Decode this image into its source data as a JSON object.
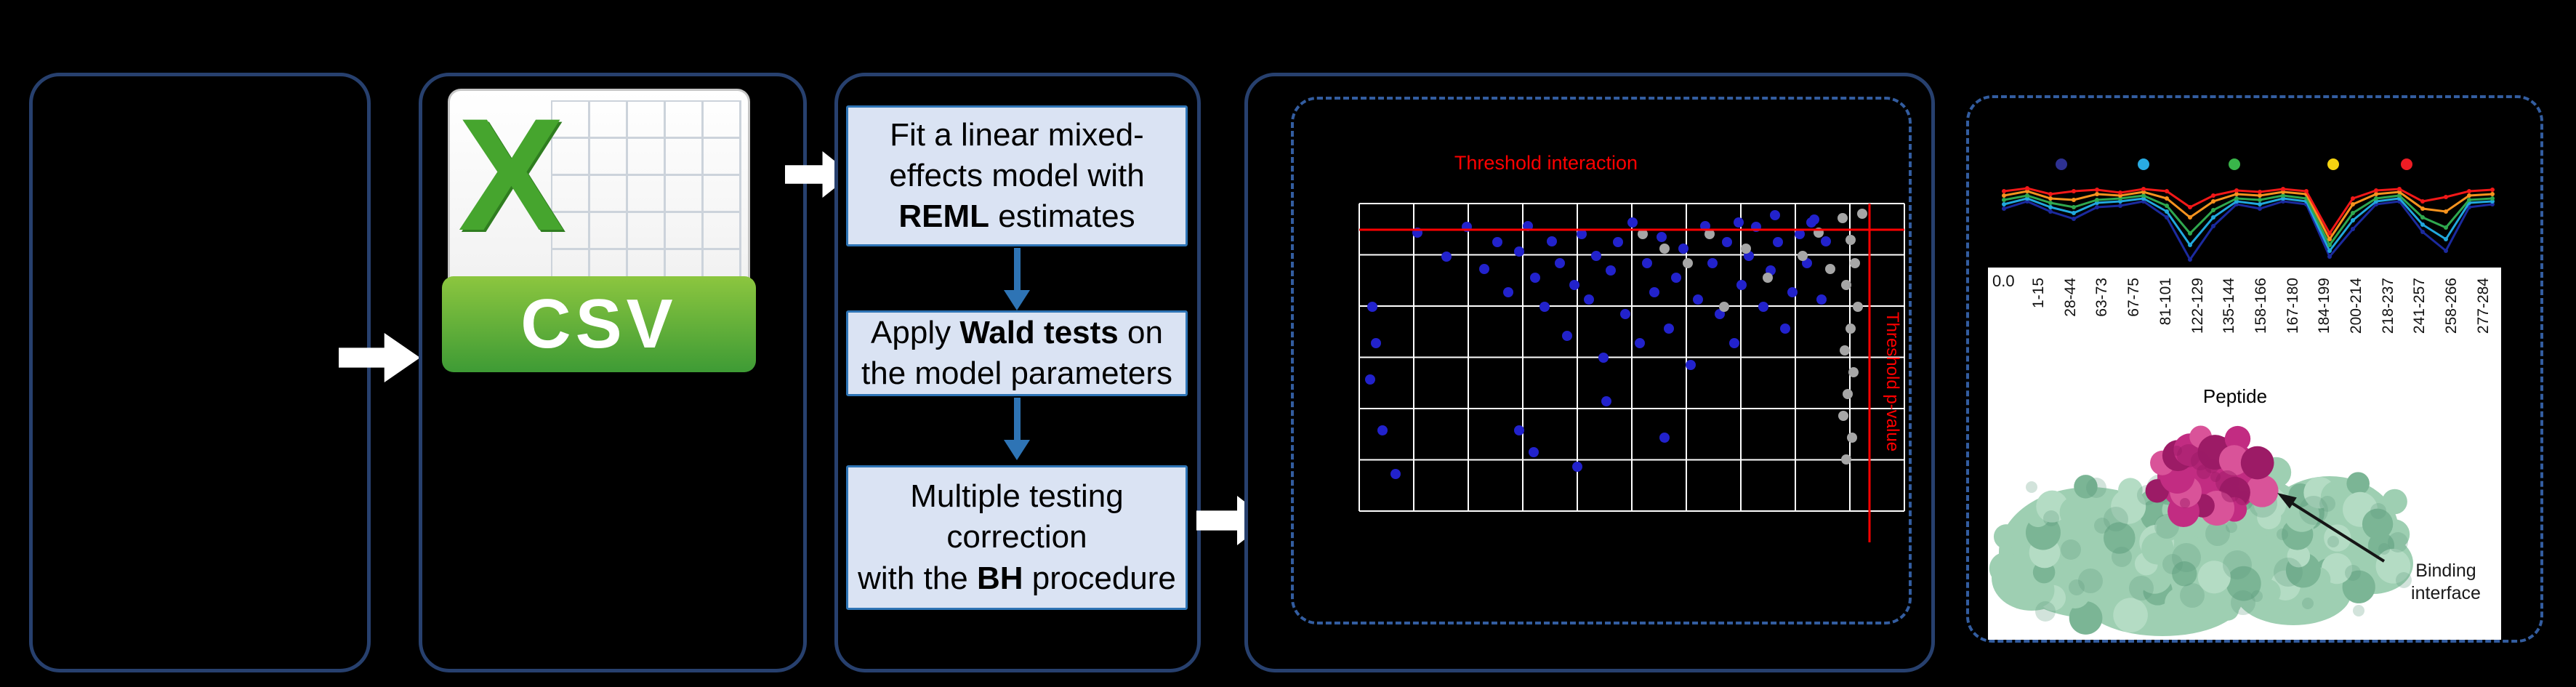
{
  "palette": {
    "background": "#000000",
    "panel_border": "#27406E",
    "dashed_border": "#335DA0",
    "step_fill": "#DAE3F3",
    "step_border": "#2E74B5",
    "arrow_white": "#FFFFFF",
    "threshold_red": "#FF0000",
    "scatter_blue": "#2222CC",
    "scatter_gray": "#A6A6A6",
    "grid_white": "#FFFFFF",
    "csv_green": "#3E9B35"
  },
  "csv_icon": {
    "letter": "X",
    "banner_label": "CSV"
  },
  "pipeline": {
    "steps": [
      {
        "lines": [
          [
            {
              "t": "Fit a linear mixed-"
            }
          ],
          [
            {
              "t": "effects model with"
            }
          ],
          [
            {
              "t": "REML",
              "b": true
            },
            {
              "t": " estimates"
            }
          ]
        ]
      },
      {
        "lines": [
          [
            {
              "t": "Apply "
            },
            {
              "t": "Wald tests",
              "b": true
            },
            {
              "t": " on"
            }
          ],
          [
            {
              "t": "the model parameters"
            }
          ]
        ]
      },
      {
        "lines": [
          [
            {
              "t": "Multiple testing"
            }
          ],
          [
            {
              "t": "correction"
            }
          ],
          [
            {
              "t": "with the "
            },
            {
              "t": "BH",
              "b": true
            },
            {
              "t": " procedure"
            }
          ]
        ]
      }
    ]
  },
  "scatter": {
    "title": "Threshold interaction",
    "right_label": "Threshold p-value",
    "blue_points": [
      [
        160,
        150
      ],
      [
        200,
        183
      ],
      [
        228,
        142
      ],
      [
        252,
        200
      ],
      [
        270,
        163
      ],
      [
        285,
        232
      ],
      [
        300,
        176
      ],
      [
        312,
        141
      ],
      [
        322,
        212
      ],
      [
        335,
        252
      ],
      [
        345,
        162
      ],
      [
        356,
        192
      ],
      [
        366,
        292
      ],
      [
        376,
        222
      ],
      [
        386,
        152
      ],
      [
        396,
        242
      ],
      [
        406,
        182
      ],
      [
        416,
        322
      ],
      [
        426,
        202
      ],
      [
        436,
        163
      ],
      [
        446,
        262
      ],
      [
        456,
        136
      ],
      [
        466,
        302
      ],
      [
        476,
        192
      ],
      [
        486,
        232
      ],
      [
        496,
        156
      ],
      [
        506,
        282
      ],
      [
        516,
        212
      ],
      [
        526,
        172
      ],
      [
        536,
        332
      ],
      [
        546,
        242
      ],
      [
        556,
        141
      ],
      [
        566,
        192
      ],
      [
        576,
        262
      ],
      [
        586,
        163
      ],
      [
        596,
        302
      ],
      [
        606,
        222
      ],
      [
        616,
        182
      ],
      [
        626,
        142
      ],
      [
        636,
        252
      ],
      [
        646,
        202
      ],
      [
        656,
        163
      ],
      [
        666,
        282
      ],
      [
        676,
        232
      ],
      [
        686,
        152
      ],
      [
        696,
        192
      ],
      [
        706,
        132
      ],
      [
        716,
        242
      ],
      [
        300,
        422
      ],
      [
        320,
        452
      ],
      [
        420,
        382
      ],
      [
        95,
        352
      ],
      [
        103,
        302
      ],
      [
        112,
        422
      ],
      [
        130,
        482
      ],
      [
        98,
        252
      ],
      [
        602,
        136
      ],
      [
        652,
        126
      ],
      [
        702,
        136
      ],
      [
        722,
        162
      ],
      [
        380,
        472
      ],
      [
        500,
        432
      ]
    ],
    "gray_points": [
      [
        745,
        130
      ],
      [
        756,
        160
      ],
      [
        762,
        192
      ],
      [
        750,
        222
      ],
      [
        766,
        252
      ],
      [
        756,
        282
      ],
      [
        748,
        312
      ],
      [
        760,
        342
      ],
      [
        752,
        372
      ],
      [
        746,
        402
      ],
      [
        758,
        432
      ],
      [
        750,
        462
      ],
      [
        690,
        182
      ],
      [
        642,
        212
      ],
      [
        582,
        252
      ],
      [
        612,
        172
      ],
      [
        562,
        152
      ],
      [
        470,
        152
      ],
      [
        500,
        172
      ],
      [
        532,
        192
      ],
      [
        712,
        150
      ],
      [
        728,
        200
      ],
      [
        772,
        124
      ]
    ]
  },
  "peptide_chart": {
    "legend_colors": [
      "#2E3192",
      "#29ABE2",
      "#39B54A",
      "#F5D311",
      "#ED1C24"
    ],
    "series": [
      {
        "color": "#1B2A9E",
        "y": [
          54,
          44,
          58,
          68,
          52,
          50,
          44,
          66,
          124,
          78,
          48,
          54,
          44,
          48,
          120,
          82,
          48,
          44,
          86,
          112,
          52,
          48
        ]
      },
      {
        "color": "#21A8DD",
        "y": [
          48,
          40,
          52,
          60,
          46,
          44,
          40,
          58,
          104,
          66,
          44,
          48,
          40,
          44,
          112,
          70,
          44,
          40,
          76,
          96,
          46,
          44
        ]
      },
      {
        "color": "#2FA84F",
        "y": [
          42,
          36,
          46,
          52,
          42,
          40,
          36,
          50,
          88,
          56,
          40,
          42,
          36,
          40,
          104,
          60,
          40,
          36,
          66,
          80,
          42,
          40
        ]
      },
      {
        "color": "#F7931E",
        "y": [
          36,
          30,
          40,
          42,
          34,
          36,
          31,
          40,
          66,
          44,
          34,
          36,
          31,
          34,
          96,
          48,
          34,
          31,
          54,
          58,
          36,
          34
        ]
      },
      {
        "color": "#F21818",
        "y": [
          30,
          26,
          34,
          30,
          28,
          32,
          27,
          30,
          52,
          36,
          29,
          31,
          27,
          30,
          88,
          40,
          29,
          27,
          44,
          38,
          30,
          28
        ]
      }
    ],
    "y_axis_label": "0.0",
    "x_labels": [
      "1-15",
      "28-44",
      "63-73",
      "67-75",
      "81-101",
      "122-129",
      "135-144",
      "158-166",
      "167-180",
      "184-199",
      "200-214",
      "218-237",
      "241-257",
      "258-266",
      "277-284"
    ],
    "axis_title": "Peptide"
  },
  "protein": {
    "annotation": "Binding interface",
    "colors": {
      "surface": "#9ECFB2",
      "surface_light": "#B4DCC4",
      "surface_dark": "#7BB595",
      "crevice": "#5F9A7C",
      "binding": "#C22C82",
      "binding_dark": "#9C1B66",
      "binding_light": "#D95399"
    }
  }
}
